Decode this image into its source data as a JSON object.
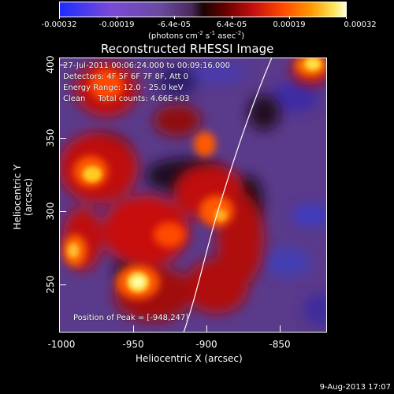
{
  "colorbar": {
    "tick_labels": [
      "-0.00032",
      "-0.00019",
      "-6.4e-05",
      "6.4e-05",
      "0.00019",
      "0.00032"
    ],
    "units_prefix": "(photons cm",
    "units_mid1": " s",
    "units_mid2": " asec",
    "units_suffix": ")",
    "units_exp1": "-2",
    "units_exp2": "-1",
    "units_exp3": "-2"
  },
  "title": "Reconstructed RHESSI Image",
  "info": {
    "line1": "27-Jul-2011 00:06:24.000 to 00:09:16.000",
    "line2": "Detectors: 4F 5F 6F 7F 8F, Att 0",
    "line3": "Energy Range: 12.0 - 25.0 keV",
    "line4": "Clean     Total counts: 4.66E+03",
    "peak": "Position of Peak = [-948,247]"
  },
  "axes": {
    "xlabel": "Heliocentric X (arcsec)",
    "ylabel": "Heliocentric Y (arcsec)",
    "xticks": [
      "-1000",
      "-950",
      "-900",
      "-850"
    ],
    "yticks": [
      "400",
      "350",
      "300",
      "250"
    ]
  },
  "stamp": "9-Aug-2013 17:07",
  "colors": {
    "min": "#1e2cff",
    "mid_neg": "#6a4aa0",
    "zero": "#1a0505",
    "mid_pos": "#c81010",
    "max": "#ffffd0"
  }
}
